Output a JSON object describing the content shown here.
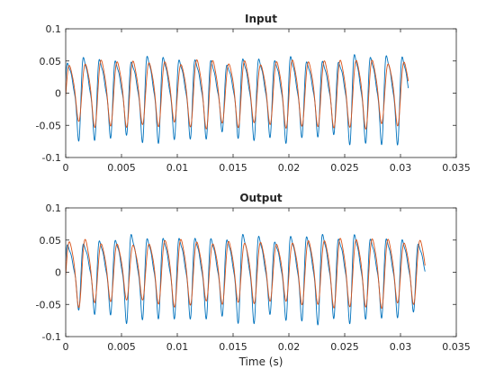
{
  "chart_data": [
    {
      "type": "line",
      "title": "Input",
      "xlabel": "",
      "ylabel": "",
      "xlim": [
        0,
        0.035
      ],
      "ylim": [
        -0.1,
        0.1
      ],
      "xticks": [
        "0",
        "0.005",
        "0.01",
        "0.015",
        "0.02",
        "0.025",
        "0.03",
        "0.035"
      ],
      "yticks": [
        "-0.1",
        "-0.05",
        "0",
        "0.05",
        "0.1"
      ],
      "grid": false,
      "signal_end": 0.0307,
      "series": [
        {
          "color": "#0072BD",
          "style": "oscillating signal, approx. 700 Hz fundamental, amplitude about ±0.08"
        },
        {
          "color": "#D95319",
          "style": "filtered version, smoother, amplitude about ±0.06"
        }
      ]
    },
    {
      "type": "line",
      "title": "Output",
      "xlabel": "Time (s)",
      "ylabel": "",
      "xlim": [
        0,
        0.035
      ],
      "ylim": [
        -0.1,
        0.1
      ],
      "xticks": [
        "0",
        "0.005",
        "0.01",
        "0.015",
        "0.02",
        "0.025",
        "0.03",
        "0.035"
      ],
      "yticks": [
        "-0.1",
        "-0.05",
        "0",
        "0.05",
        "0.1"
      ],
      "grid": false,
      "signal_end": 0.0322,
      "series": [
        {
          "color": "#0072BD",
          "style": "oscillating signal, approx. 700 Hz fundamental, amplitude about ±0.08"
        },
        {
          "color": "#D95319",
          "style": "filtered version, smoother, amplitude about ±0.06"
        }
      ]
    }
  ]
}
